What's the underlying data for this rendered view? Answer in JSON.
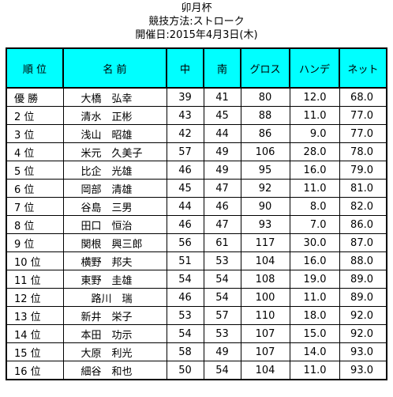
{
  "header": {
    "title": "卯月杯",
    "method": "競技方法:ストローク",
    "date": "開催日:2015年4月3日(木)"
  },
  "colors": {
    "header_bg": "#00ffff",
    "border": "#000000"
  },
  "table": {
    "columns": [
      "順 位",
      "名 前",
      "中",
      "南",
      "グロス",
      "ハンデ",
      "ネット"
    ],
    "rows": [
      [
        "優 勝",
        "大橋　弘幸",
        "39",
        "41",
        "80",
        "12.0",
        "68.0"
      ],
      [
        "2 位",
        "清水　正彬",
        "43",
        "45",
        "88",
        "11.0",
        "77.0"
      ],
      [
        "3 位",
        "浅山　昭雄",
        "42",
        "44",
        "86",
        "9.0",
        "77.0"
      ],
      [
        "4 位",
        "米元　久美子",
        "57",
        "49",
        "106",
        "28.0",
        "78.0"
      ],
      [
        "5 位",
        "比企　光雄",
        "46",
        "49",
        "95",
        "16.0",
        "79.0"
      ],
      [
        "6 位",
        "岡部　清雄",
        "45",
        "47",
        "92",
        "11.0",
        "81.0"
      ],
      [
        "7 位",
        "谷島　三男",
        "44",
        "46",
        "90",
        "8.0",
        "82.0"
      ],
      [
        "8 位",
        "田口　恒治",
        "46",
        "47",
        "93",
        "7.0",
        "86.0"
      ],
      [
        "9 位",
        "関根　興三郎",
        "56",
        "61",
        "117",
        "30.0",
        "87.0"
      ],
      [
        "10 位",
        "横野　邦夫",
        "51",
        "53",
        "104",
        "16.0",
        "88.0"
      ],
      [
        "11 位",
        "東野　圭雄",
        "54",
        "54",
        "108",
        "19.0",
        "89.0"
      ],
      [
        "12 位",
        "　路川　瑞",
        "46",
        "54",
        "100",
        "11.0",
        "89.0"
      ],
      [
        "13 位",
        "新井　栄子",
        "53",
        "57",
        "110",
        "18.0",
        "92.0"
      ],
      [
        "14 位",
        "本田　功示",
        "54",
        "53",
        "107",
        "15.0",
        "92.0"
      ],
      [
        "15 位",
        "大原　利光",
        "58",
        "49",
        "107",
        "14.0",
        "93.0"
      ],
      [
        "16 位",
        "細谷　和也",
        "50",
        "54",
        "104",
        "11.0",
        "93.0"
      ]
    ]
  }
}
